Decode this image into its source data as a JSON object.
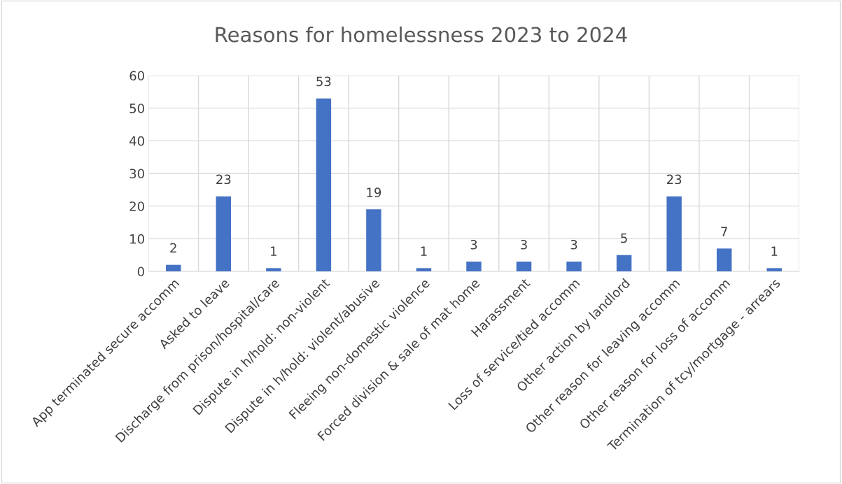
{
  "chart_data": {
    "type": "bar",
    "title": "Reasons for homelessness 2023 to 2024",
    "categories": [
      "App terminated secure accomm",
      "Asked to leave",
      "Discharge from prison/hospital/care",
      "Dispute in h/hold: non-violent",
      "Dispute in h/hold: violent/abusive",
      "Fleeing non-domestic violence",
      "Forced division & sale of mat home",
      "Harassment",
      "Loss of service/tied accomm",
      "Other action by landlord",
      "Other reason for leaving accomm",
      "Other reason for loss of accomm",
      "Termination of tcy/mortgage - arrears"
    ],
    "values": [
      2,
      23,
      1,
      53,
      19,
      1,
      3,
      3,
      3,
      5,
      23,
      7,
      1
    ],
    "color": "#4472c4",
    "ylim": [
      0,
      60
    ],
    "yticks": [
      0,
      10,
      20,
      30,
      40,
      50,
      60
    ],
    "grid": true,
    "data_labels": true
  }
}
